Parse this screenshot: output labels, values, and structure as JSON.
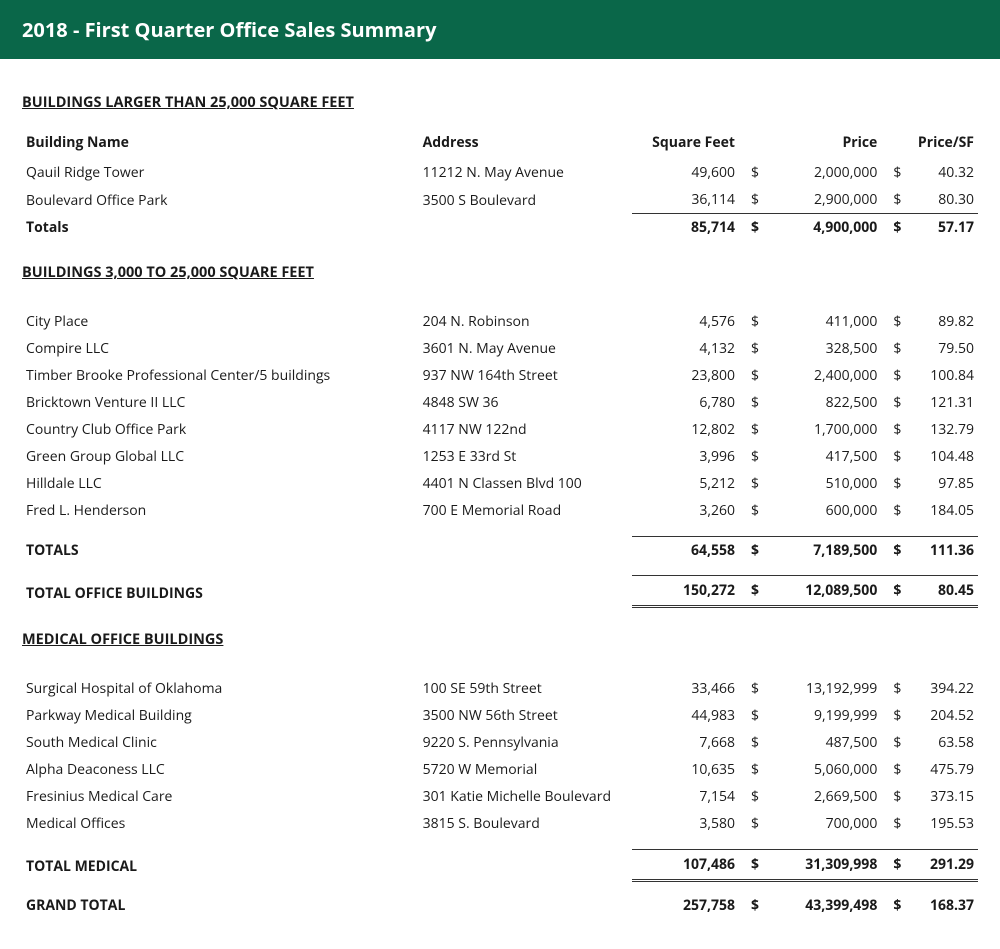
{
  "colors": {
    "header_bg": "#0a6749",
    "header_fg": "#ffffff",
    "text": "#1a1a1a"
  },
  "title": "2018 - First Quarter Office Sales Summary",
  "columns": {
    "name": "Building Name",
    "address": "Address",
    "sqft": "Square Feet",
    "price": "Price",
    "psf": "Price/SF"
  },
  "section1": {
    "heading": "BUILDINGS LARGER THAN 25,000 SQUARE FEET",
    "rows": [
      {
        "name": "Qauil Ridge Tower",
        "address": "11212 N. May Avenue",
        "sqft": "49,600",
        "price": "2,000,000",
        "psf": "40.32"
      },
      {
        "name": "Boulevard Office Park",
        "address": "3500 S Boulevard",
        "sqft": "36,114",
        "price": "2,900,000",
        "psf": "80.30"
      }
    ],
    "totals_label": "Totals",
    "totals": {
      "sqft": "85,714",
      "price": "4,900,000",
      "psf": "57.17"
    }
  },
  "section2": {
    "heading": "BUILDINGS 3,000 TO 25,000 SQUARE FEET",
    "rows": [
      {
        "name": "City Place",
        "address": "204 N. Robinson",
        "sqft": "4,576",
        "price": "411,000",
        "psf": "89.82"
      },
      {
        "name": "Compire LLC",
        "address": "3601 N. May Avenue",
        "sqft": "4,132",
        "price": "328,500",
        "psf": "79.50"
      },
      {
        "name": "Timber Brooke Professional Center/5 buildings",
        "address": "937 NW 164th Street",
        "sqft": "23,800",
        "price": "2,400,000",
        "psf": "100.84"
      },
      {
        "name": "Bricktown Venture II LLC",
        "address": "4848 SW 36",
        "sqft": "6,780",
        "price": "822,500",
        "psf": "121.31"
      },
      {
        "name": "Country Club Office Park",
        "address": "4117 NW 122nd",
        "sqft": "12,802",
        "price": "1,700,000",
        "psf": "132.79"
      },
      {
        "name": "Green Group Global LLC",
        "address": "1253 E 33rd St",
        "sqft": "3,996",
        "price": "417,500",
        "psf": "104.48"
      },
      {
        "name": "Hilldale LLC",
        "address": "4401 N Classen Blvd 100",
        "sqft": "5,212",
        "price": "510,000",
        "psf": "97.85"
      },
      {
        "name": "Fred L. Henderson",
        "address": "700 E Memorial Road",
        "sqft": "3,260",
        "price": "600,000",
        "psf": "184.05"
      }
    ],
    "totals_label": "TOTALS",
    "totals": {
      "sqft": "64,558",
      "price": "7,189,500",
      "psf": "111.36"
    }
  },
  "total_office": {
    "label": "TOTAL OFFICE BUILDINGS",
    "sqft": "150,272",
    "price": "12,089,500",
    "psf": "80.45"
  },
  "section3": {
    "heading": "MEDICAL OFFICE BUILDINGS",
    "rows": [
      {
        "name": "Surgical Hospital of Oklahoma",
        "address": "100 SE 59th Street",
        "sqft": "33,466",
        "price": "13,192,999",
        "psf": "394.22"
      },
      {
        "name": "Parkway Medical Building",
        "address": "3500 NW 56th Street",
        "sqft": "44,983",
        "price": "9,199,999",
        "psf": "204.52"
      },
      {
        "name": "South Medical Clinic",
        "address": "9220 S. Pennsylvania",
        "sqft": "7,668",
        "price": "487,500",
        "psf": "63.58"
      },
      {
        "name": "Alpha Deaconess LLC",
        "address": "5720 W Memorial",
        "sqft": "10,635",
        "price": "5,060,000",
        "psf": "475.79"
      },
      {
        "name": "Fresinius Medical Care",
        "address": "301 Katie Michelle Boulevard",
        "sqft": "7,154",
        "price": "2,669,500",
        "psf": "373.15"
      },
      {
        "name": "Medical Offices",
        "address": "3815 S. Boulevard",
        "sqft": "3,580",
        "price": "700,000",
        "psf": "195.53"
      }
    ],
    "totals_label": "TOTAL MEDICAL",
    "totals": {
      "sqft": "107,486",
      "price": "31,309,998",
      "psf": "291.29"
    }
  },
  "grand_total": {
    "label": "GRAND TOTAL",
    "sqft": "257,758",
    "price": "43,399,498",
    "psf": "168.37"
  }
}
